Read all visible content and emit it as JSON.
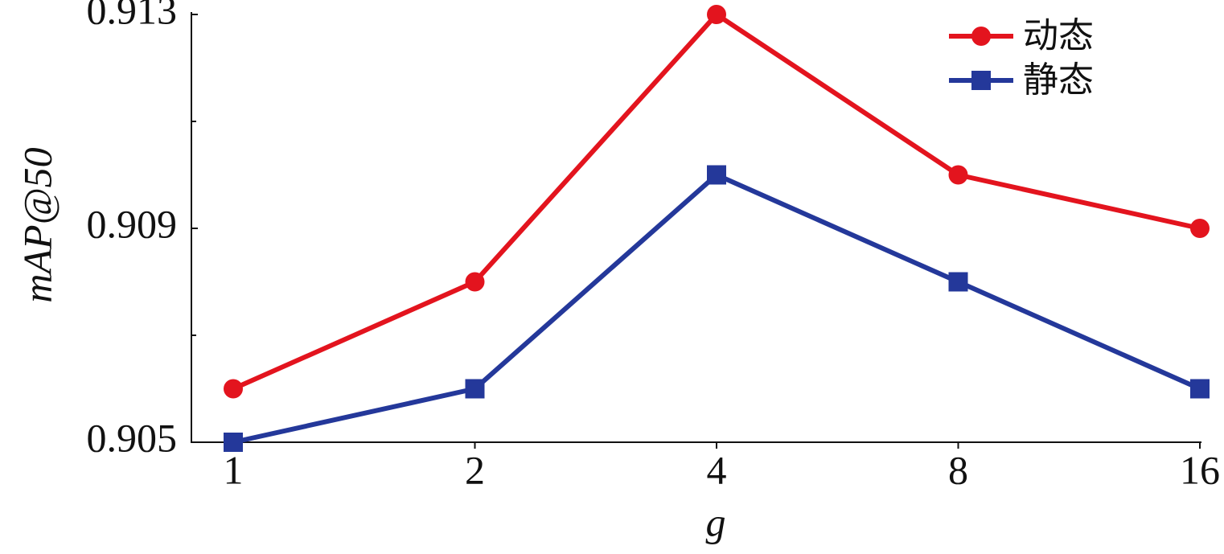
{
  "chart_data": {
    "type": "line",
    "x_label": "g",
    "y_label": "mAP@50",
    "categories": [
      "1",
      "2",
      "4",
      "8",
      "16"
    ],
    "series": [
      {
        "name": "动态",
        "color": "#e3141e",
        "marker": "circle",
        "values": [
          0.906,
          0.908,
          0.913,
          0.91,
          0.909
        ]
      },
      {
        "name": "静态",
        "color": "#24389a",
        "marker": "square",
        "values": [
          0.905,
          0.906,
          0.91,
          0.908,
          0.906
        ]
      }
    ],
    "ylim": [
      0.905,
      0.913
    ],
    "yticks": [
      0.905,
      0.909,
      0.913
    ],
    "minor_yticks": [
      0.907,
      0.911
    ],
    "grid": false,
    "legend": "top-right"
  }
}
